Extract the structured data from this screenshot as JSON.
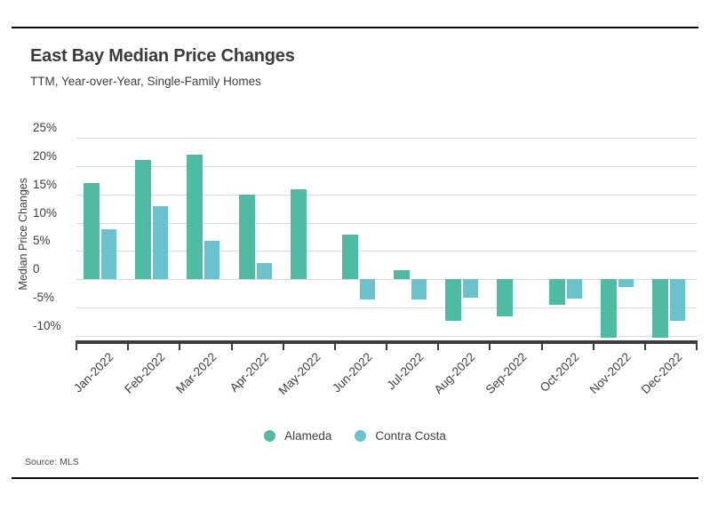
{
  "chart_data": {
    "type": "bar",
    "title": "East Bay Median Price Changes",
    "subtitle": "TTM, Year-over-Year, Single-Family Homes",
    "ylabel": "Median Price Changes",
    "source_note": "Source: MLS",
    "categories": [
      "Jan-2022",
      "Feb-2022",
      "Mar-2022",
      "Apr-2022",
      "May-2022",
      "Jun-2022",
      "Jul-2022",
      "Aug-2022",
      "Sep-2022",
      "Oct-2022",
      "Nov-2022",
      "Dec-2022"
    ],
    "series": [
      {
        "name": "Alameda",
        "color": "#4fbba3",
        "values": [
          17.0,
          21.1,
          22.0,
          15.0,
          15.9,
          7.9,
          1.7,
          -7.3,
          -6.5,
          -4.5,
          -10.3,
          -10.3
        ]
      },
      {
        "name": "Contra Costa",
        "color": "#6ac2cc",
        "values": [
          8.9,
          12.9,
          6.8,
          2.9,
          null,
          -3.5,
          -3.5,
          -3.3,
          null,
          -3.4,
          -1.3,
          -7.4
        ]
      }
    ],
    "ytick_values": [
      25,
      20,
      15,
      10,
      5,
      0,
      -5,
      -10
    ],
    "ytick_labels": [
      "25%",
      "20%",
      "15%",
      "10%",
      "5%",
      "0",
      "-5%",
      "-10%"
    ],
    "ylim": [
      -10.9,
      27.8
    ],
    "grid": true,
    "legend_position": "bottom",
    "colors": {
      "axis": "#3c3c3c",
      "gridline": "#dadada",
      "text": "#3e3e3e",
      "rule": "#0a0a0a"
    }
  }
}
